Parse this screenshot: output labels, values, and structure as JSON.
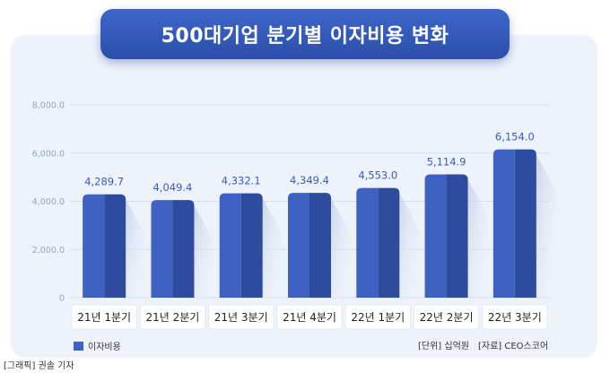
{
  "title": "500대기업 분기별 이자비용 변화",
  "legend": {
    "label": "이자비용",
    "color": "#3e62c4"
  },
  "unit_note": "[단위] 십억원",
  "source_note": "[자료] CEO스코어",
  "credit": "[그래픽] 권솔 기자",
  "chart_data": {
    "type": "bar",
    "title": "500대기업 분기별 이자비용 변화",
    "categories": [
      "21년 1분기",
      "21년 2분기",
      "21년 3분기",
      "21년 4분기",
      "22년 1분기",
      "22년 2분기",
      "22년 3분기"
    ],
    "series": [
      {
        "name": "이자비용",
        "values": [
          4289.7,
          4049.4,
          4332.1,
          4349.4,
          4553.0,
          5114.9,
          6154.0
        ]
      }
    ],
    "value_labels": [
      "4,289.7",
      "4,049.4",
      "4,332.1",
      "4,349.4",
      "4,553.0",
      "5,114.9",
      "6,154.0"
    ],
    "y_ticks": [
      0,
      2000,
      4000,
      6000,
      8000
    ],
    "y_tick_labels": [
      "0",
      "2,000.0",
      "4,000.0",
      "6,000.0",
      "8,000.0"
    ],
    "ylim": [
      0,
      8000
    ],
    "xlabel": "",
    "ylabel": "",
    "grid": true,
    "legend_position": "bottom-left",
    "colors": {
      "bar_light": "#3e62c4",
      "bar_dark": "#2d4c9e",
      "value_label": "#3a5bb8",
      "tick": "#8fa4c8"
    }
  }
}
